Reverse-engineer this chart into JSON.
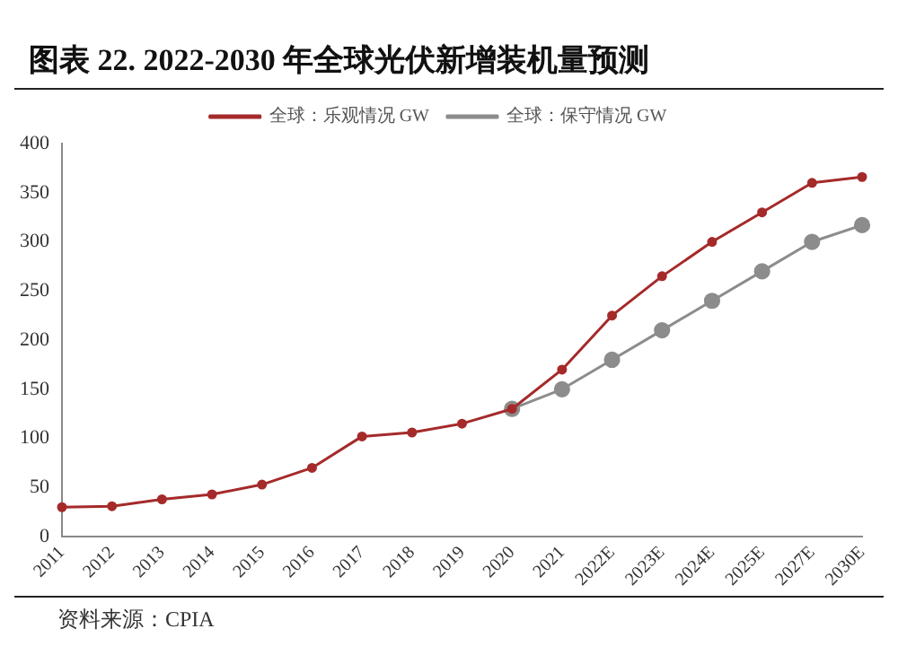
{
  "chart_data": {
    "type": "line",
    "title": "图表 22. 2022-2030 年全球光伏新增装机量预测",
    "categories": [
      "2011",
      "2012",
      "2013",
      "2014",
      "2015",
      "2016",
      "2017",
      "2018",
      "2019",
      "2020",
      "2021",
      "2022E",
      "2023E",
      "2024E",
      "2025E",
      "2027E",
      "2030E"
    ],
    "series": [
      {
        "name": "全球：乐观情况 GW",
        "color": "#a52a2a",
        "values": [
          30,
          31,
          38,
          43,
          53,
          70,
          102,
          106,
          115,
          130,
          170,
          225,
          265,
          300,
          330,
          360,
          366
        ]
      },
      {
        "name": "全球：保守情况 GW",
        "color": "#8c8c8c",
        "values": [
          null,
          null,
          null,
          null,
          null,
          null,
          null,
          null,
          null,
          130,
          150,
          180,
          210,
          240,
          270,
          300,
          317
        ]
      }
    ],
    "ylim": [
      0,
      400
    ],
    "yticks": [
      0,
      50,
      100,
      150,
      200,
      250,
      300,
      350,
      400
    ],
    "grid": false,
    "legend": "top",
    "marker": "circle",
    "line_style": "solid",
    "annotations": [
      "资料来源：CPIA"
    ]
  }
}
